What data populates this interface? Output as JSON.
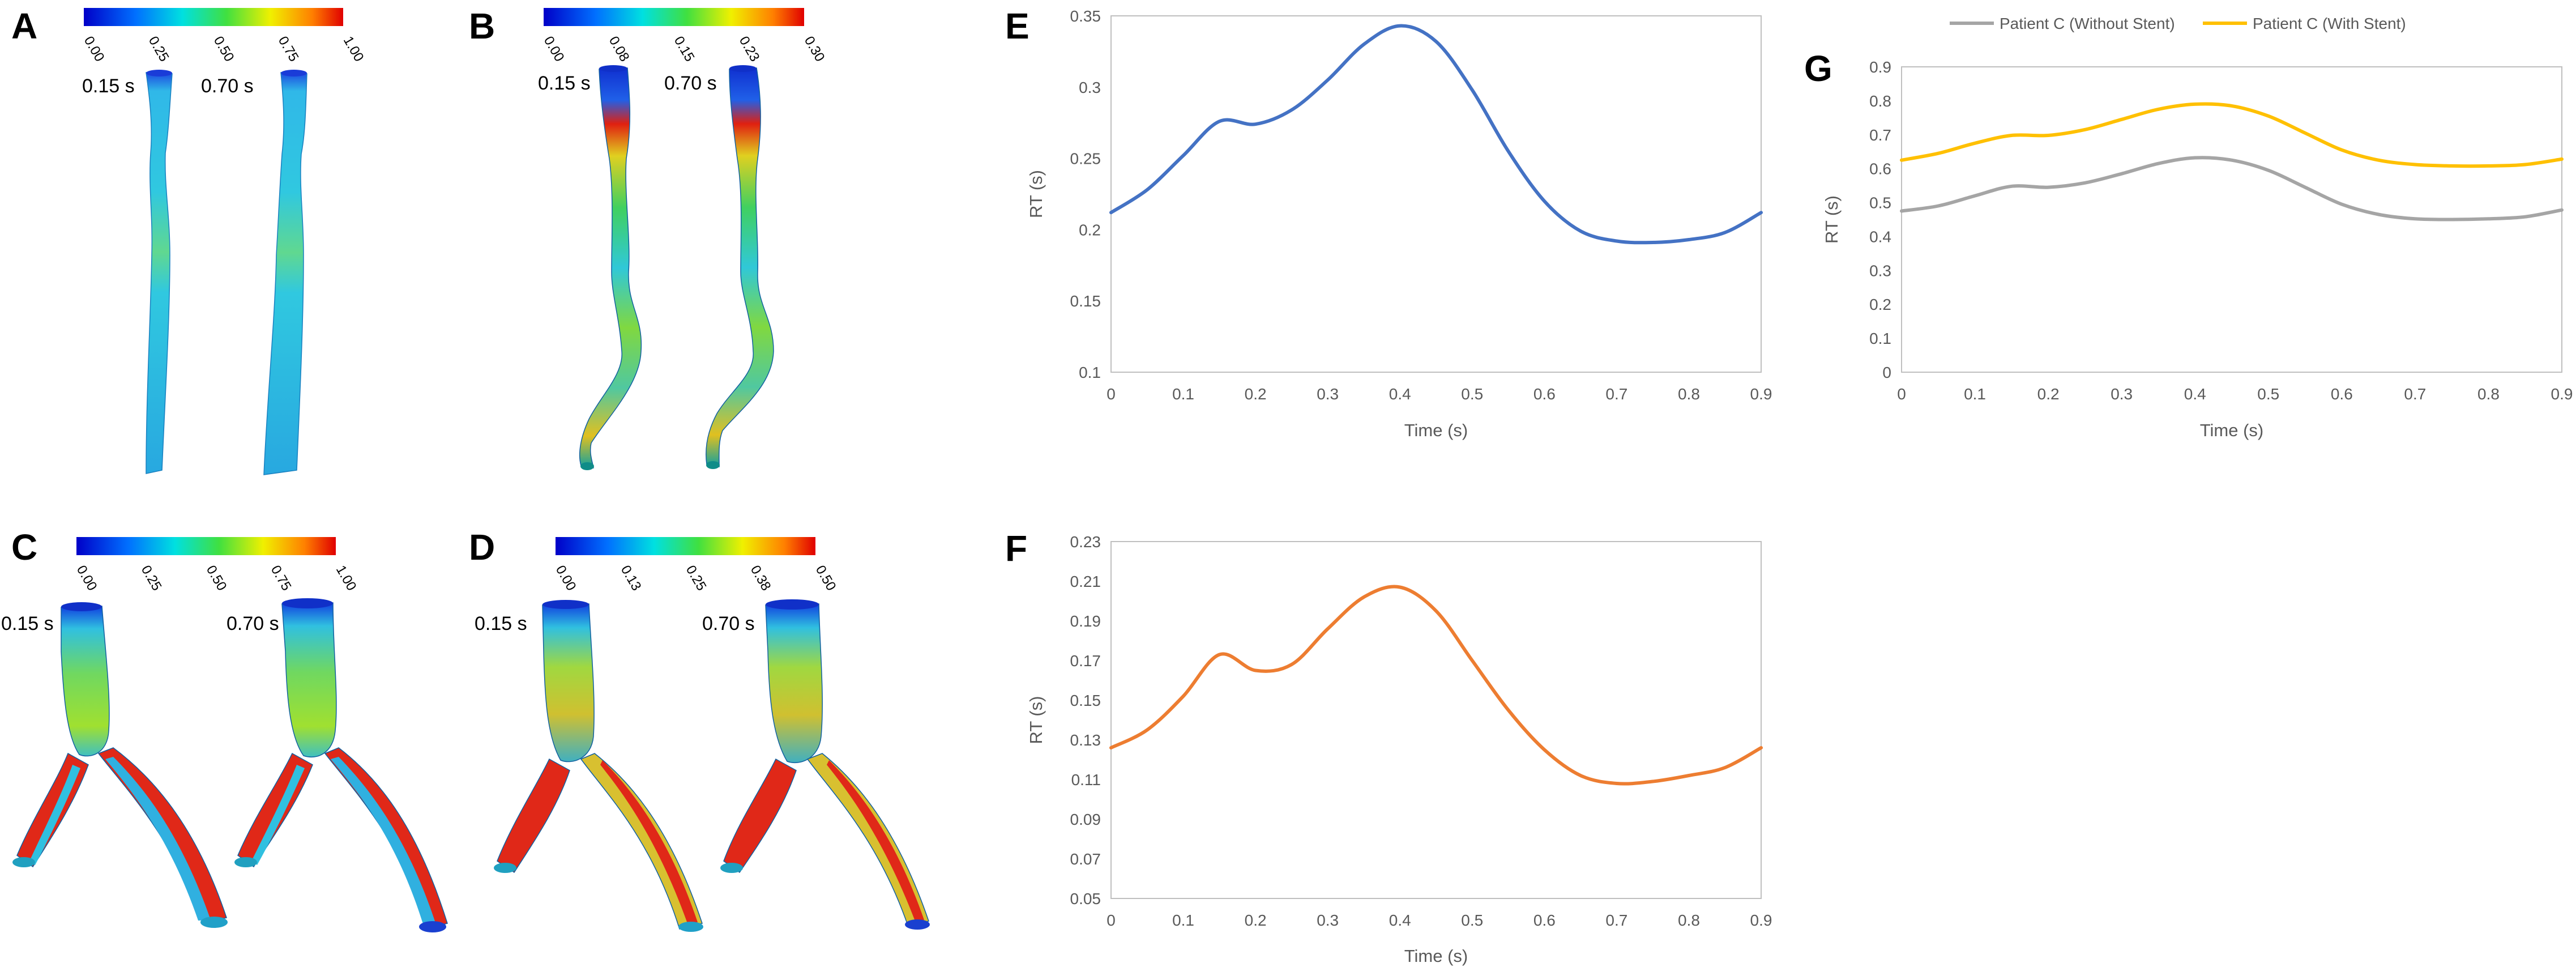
{
  "figure": {
    "panels": {
      "A": {
        "letter": "A",
        "times": [
          "0.15 s",
          "0.70 s"
        ],
        "colorbar": [
          "0.00",
          "0.25",
          "0.50",
          "0.75",
          "1.00"
        ]
      },
      "B": {
        "letter": "B",
        "times": [
          "0.15 s",
          "0.70 s"
        ],
        "colorbar": [
          "0.00",
          "0.08",
          "0.15",
          "0.23",
          "0.30"
        ]
      },
      "C": {
        "letter": "C",
        "times": [
          "0.15 s",
          "0.70 s"
        ],
        "colorbar": [
          "0.00",
          "0.25",
          "0.50",
          "0.75",
          "1.00"
        ]
      },
      "D": {
        "letter": "D",
        "times": [
          "0.15 s",
          "0.70 s"
        ],
        "colorbar": [
          "0.00",
          "0.13",
          "0.25",
          "0.38",
          "0.50"
        ]
      }
    }
  },
  "chart_data": [
    {
      "id": "E",
      "type": "line",
      "panel_letter": "E",
      "xlabel": "Time (s)",
      "ylabel": "RT (s)",
      "xlim": [
        0,
        0.9
      ],
      "ylim": [
        0.1,
        0.35
      ],
      "xticks": [
        "0",
        "0.1",
        "0.2",
        "0.3",
        "0.4",
        "0.5",
        "0.6",
        "0.7",
        "0.8",
        "0.9"
      ],
      "yticks": [
        "0.1",
        "0.15",
        "0.2",
        "0.25",
        "0.3",
        "0.35"
      ],
      "grid": false,
      "series": [
        {
          "color": "#4472c4",
          "x": [
            0,
            0.05,
            0.1,
            0.15,
            0.2,
            0.25,
            0.3,
            0.35,
            0.4,
            0.45,
            0.5,
            0.55,
            0.6,
            0.65,
            0.7,
            0.75,
            0.8,
            0.85,
            0.9
          ],
          "values": [
            0.212,
            0.228,
            0.252,
            0.276,
            0.274,
            0.284,
            0.305,
            0.33,
            0.343,
            0.332,
            0.298,
            0.255,
            0.22,
            0.199,
            0.192,
            0.191,
            0.193,
            0.198,
            0.212
          ]
        }
      ]
    },
    {
      "id": "F",
      "type": "line",
      "panel_letter": "F",
      "xlabel": "Time (s)",
      "ylabel": "RT (s)",
      "xlim": [
        0,
        0.9
      ],
      "ylim": [
        0.05,
        0.23
      ],
      "xticks": [
        "0",
        "0.1",
        "0.2",
        "0.3",
        "0.4",
        "0.5",
        "0.6",
        "0.7",
        "0.8",
        "0.9"
      ],
      "yticks": [
        "0.05",
        "0.07",
        "0.09",
        "0.11",
        "0.13",
        "0.15",
        "0.17",
        "0.19",
        "0.21",
        "0.23"
      ],
      "grid": false,
      "series": [
        {
          "color": "#ed7d31",
          "x": [
            0,
            0.05,
            0.1,
            0.15,
            0.2,
            0.25,
            0.3,
            0.35,
            0.4,
            0.45,
            0.5,
            0.55,
            0.6,
            0.65,
            0.7,
            0.75,
            0.8,
            0.85,
            0.9
          ],
          "values": [
            0.126,
            0.135,
            0.152,
            0.173,
            0.165,
            0.168,
            0.186,
            0.202,
            0.207,
            0.195,
            0.17,
            0.145,
            0.125,
            0.112,
            0.108,
            0.109,
            0.112,
            0.116,
            0.126
          ]
        }
      ]
    },
    {
      "id": "G",
      "type": "line",
      "panel_letter": "G",
      "xlabel": "Time (s)",
      "ylabel": "RT (s)",
      "xlim": [
        0,
        0.9
      ],
      "ylim": [
        0,
        0.9
      ],
      "xticks": [
        "0",
        "0.1",
        "0.2",
        "0.3",
        "0.4",
        "0.5",
        "0.6",
        "0.7",
        "0.8",
        "0.9"
      ],
      "yticks": [
        "0",
        "0.1",
        "0.2",
        "0.3",
        "0.4",
        "0.5",
        "0.6",
        "0.7",
        "0.8",
        "0.9"
      ],
      "grid": false,
      "legend_position": "top",
      "series": [
        {
          "name": "Patient C (Without Stent)",
          "color": "#a5a5a5",
          "x": [
            0,
            0.05,
            0.1,
            0.15,
            0.2,
            0.25,
            0.3,
            0.35,
            0.4,
            0.45,
            0.5,
            0.55,
            0.6,
            0.65,
            0.7,
            0.75,
            0.8,
            0.85,
            0.9
          ],
          "values": [
            0.475,
            0.49,
            0.52,
            0.548,
            0.545,
            0.558,
            0.585,
            0.615,
            0.632,
            0.625,
            0.595,
            0.545,
            0.495,
            0.465,
            0.452,
            0.45,
            0.452,
            0.458,
            0.478
          ]
        },
        {
          "name": "Patient C (With Stent)",
          "color": "#ffc000",
          "x": [
            0,
            0.05,
            0.1,
            0.15,
            0.2,
            0.25,
            0.3,
            0.35,
            0.4,
            0.45,
            0.5,
            0.55,
            0.6,
            0.65,
            0.7,
            0.75,
            0.8,
            0.85,
            0.9
          ],
          "values": [
            0.625,
            0.645,
            0.675,
            0.698,
            0.698,
            0.715,
            0.745,
            0.775,
            0.79,
            0.785,
            0.755,
            0.705,
            0.655,
            0.625,
            0.612,
            0.608,
            0.608,
            0.612,
            0.628
          ]
        }
      ]
    }
  ]
}
